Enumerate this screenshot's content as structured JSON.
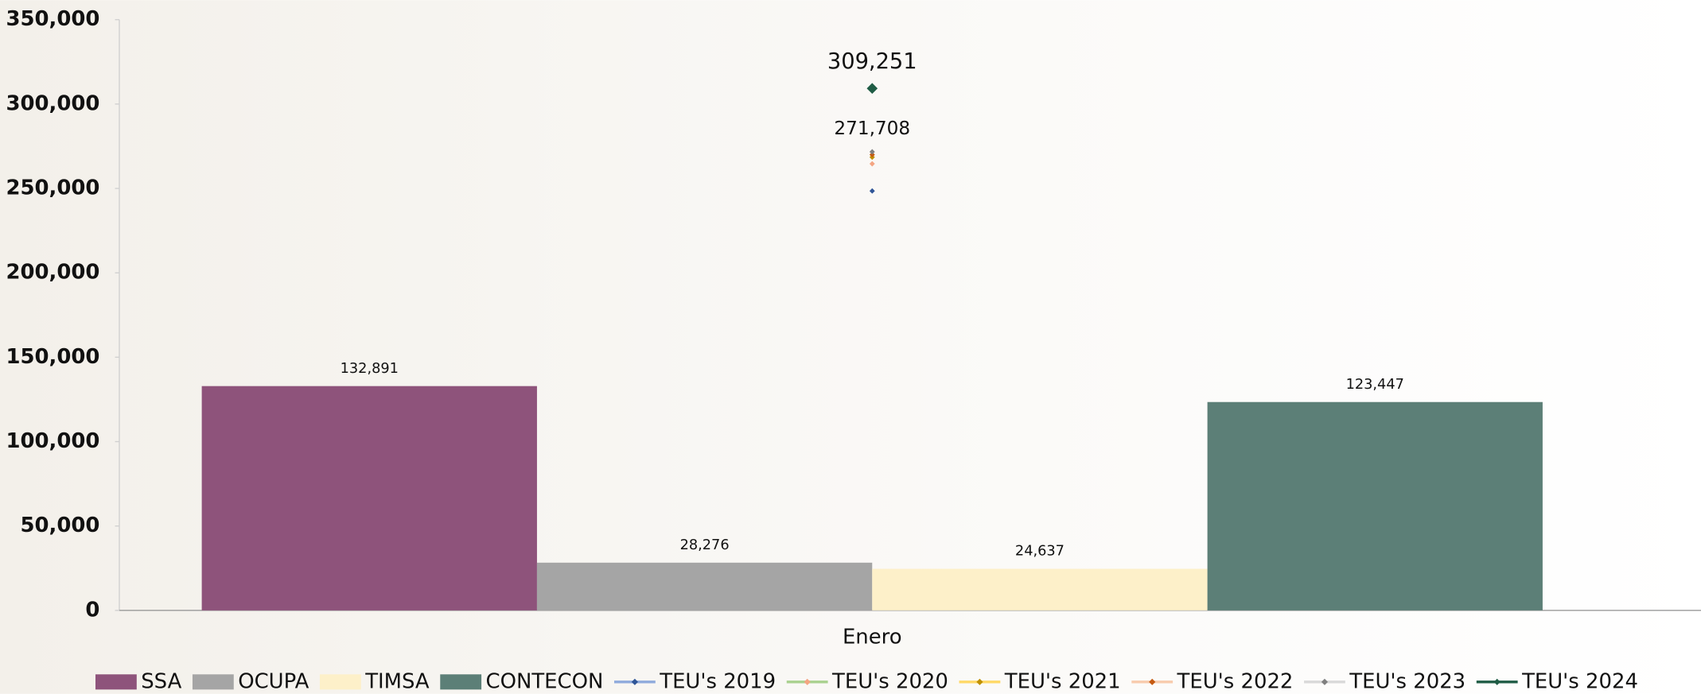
{
  "chart_data": {
    "type": "bar",
    "categories": [
      "Enero"
    ],
    "ylim": [
      0,
      350000
    ],
    "yticks": [
      0,
      {
        "value": 50000,
        "label": "50,000"
      },
      {
        "value": 100000,
        "label": "100,000"
      },
      {
        "value": 150000,
        "label": "150,000"
      },
      {
        "value": 200000,
        "label": "200,000"
      },
      {
        "value": 250000,
        "label": "250,000"
      },
      {
        "value": 300000,
        "label": "300,000"
      },
      {
        "value": 350000,
        "label": "350,000"
      }
    ],
    "legend": "bottom",
    "series": [
      {
        "name": "SSA",
        "type": "bar",
        "color": "#8e537b",
        "values": [
          132891
        ],
        "value_labels": [
          "132,891"
        ]
      },
      {
        "name": "OCUPA",
        "type": "bar",
        "color": "#a5a5a5",
        "values": [
          28276
        ],
        "value_labels": [
          "28,276"
        ]
      },
      {
        "name": "TIMSA",
        "type": "bar",
        "color": "#fdf0c9",
        "values": [
          24637
        ],
        "value_labels": [
          "24,637"
        ]
      },
      {
        "name": "CONTECON",
        "type": "bar",
        "color": "#5c7f77",
        "values": [
          123447
        ],
        "value_labels": [
          "123,447"
        ]
      },
      {
        "name": "TEU's 2019",
        "type": "line",
        "color": "#8faadc",
        "marker_color": "#2f5597",
        "values": [
          248500
        ]
      },
      {
        "name": "TEU's 2020",
        "type": "line",
        "color": "#a9d18e",
        "marker_color": "#f4a582",
        "values": [
          264600
        ]
      },
      {
        "name": "TEU's 2021",
        "type": "line",
        "color": "#ffd966",
        "marker_color": "#bf9000",
        "values": [
          268500
        ]
      },
      {
        "name": "TEU's 2022",
        "type": "line",
        "color": "#f8cbad",
        "marker_color": "#c55a11",
        "values": [
          270000
        ]
      },
      {
        "name": "TEU's 2023",
        "type": "line",
        "color": "#d9d9d9",
        "marker_color": "#7f7f7f",
        "values": [
          271708
        ],
        "value_labels": [
          "271,708"
        ]
      },
      {
        "name": "TEU's 2024",
        "type": "line",
        "color": "#1f5c45",
        "marker_color": "#1f5c45",
        "values": [
          309251
        ],
        "value_labels": [
          "309,251"
        ]
      }
    ]
  }
}
